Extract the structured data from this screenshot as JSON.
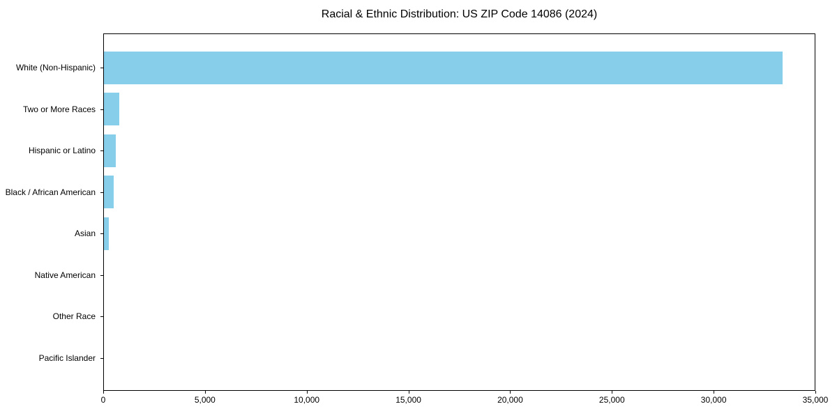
{
  "chart_data": {
    "type": "bar",
    "orientation": "horizontal",
    "title": "Racial & Ethnic Distribution: US ZIP Code 14086 (2024)",
    "xlabel": "",
    "ylabel": "",
    "categories": [
      "White (Non-Hispanic)",
      "Two or More Races",
      "Hispanic or Latino",
      "Black / African American",
      "Asian",
      "Native American",
      "Other Race",
      "Pacific Islander"
    ],
    "values": [
      33400,
      800,
      615,
      525,
      280,
      40,
      30,
      5
    ],
    "xlim": [
      0,
      35000
    ],
    "x_ticks": [
      0,
      5000,
      10000,
      15000,
      20000,
      25000,
      30000,
      35000
    ],
    "x_tick_labels": [
      "0",
      "5,000",
      "10,000",
      "15,000",
      "20,000",
      "25,000",
      "30,000",
      "35,000"
    ],
    "bar_color": "#87CEEB",
    "axis_color": "#000000",
    "text_color": "#000000",
    "grid": false,
    "legend": null
  }
}
